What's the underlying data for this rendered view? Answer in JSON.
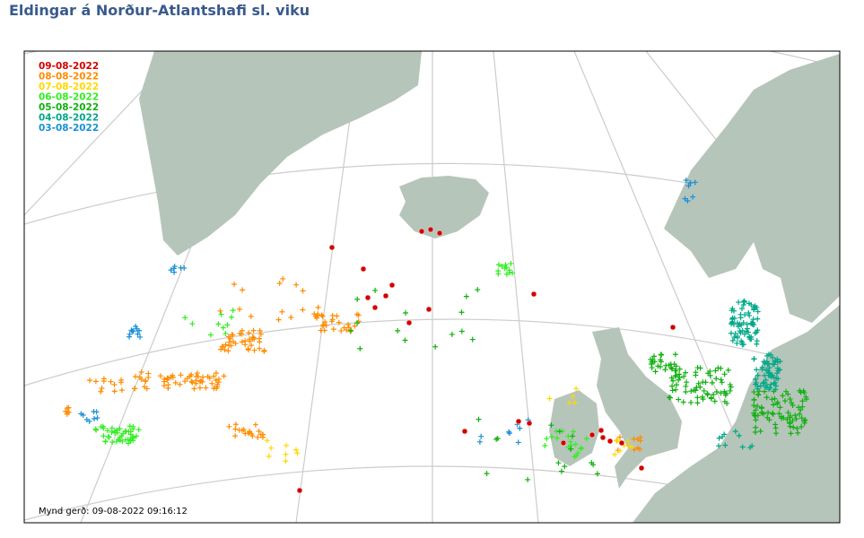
{
  "header": {
    "title": "Eldingar á Norður-Atlantshafi sl. viku"
  },
  "legend": [
    {
      "label": "09-08-2022",
      "color": "#d40000"
    },
    {
      "label": "08-08-2022",
      "color": "#ff8c00"
    },
    {
      "label": "07-08-2022",
      "color": "#ffd800"
    },
    {
      "label": "06-08-2022",
      "color": "#33ee22"
    },
    {
      "label": "05-08-2022",
      "color": "#11b011"
    },
    {
      "label": "04-08-2022",
      "color": "#00a888"
    },
    {
      "label": "03-08-2022",
      "color": "#1a8fd6"
    }
  ],
  "footer": "Mynd gerð: 09-08-2022 09:16:12"
}
